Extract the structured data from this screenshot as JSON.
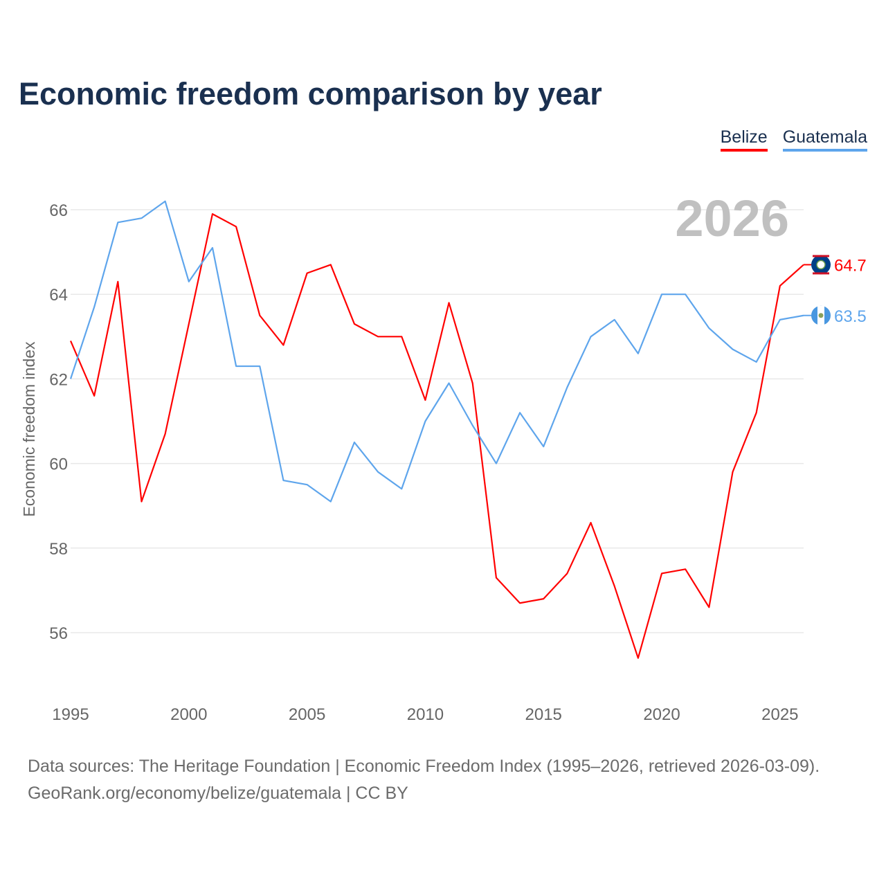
{
  "title": "Economic freedom comparison by year",
  "source_line1": "Data sources: The Heritage Foundation | Economic Freedom Index (1995–2026, retrieved 2026-03-09).",
  "source_line2": "GeoRank.org/economy/belize/guatemala | CC BY",
  "chart_data": {
    "type": "line",
    "title": "Economic freedom comparison by year",
    "xlabel": "",
    "ylabel": "Economic freedom index",
    "year_label": "2026",
    "x": [
      1995,
      1996,
      1997,
      1998,
      1999,
      2000,
      2001,
      2002,
      2003,
      2004,
      2005,
      2006,
      2007,
      2008,
      2009,
      2010,
      2011,
      2012,
      2013,
      2014,
      2015,
      2016,
      2017,
      2018,
      2019,
      2020,
      2021,
      2022,
      2023,
      2024,
      2025,
      2026
    ],
    "xticks": [
      1995,
      2000,
      2005,
      2010,
      2015,
      2020,
      2025
    ],
    "yticks": [
      56,
      58,
      60,
      62,
      64,
      66
    ],
    "xlim": [
      1995,
      2026
    ],
    "ylim": [
      54.8,
      66.4
    ],
    "grid": true,
    "legend_position": "top-right",
    "series": [
      {
        "name": "Belize",
        "color": "#ff0000",
        "end_label": "64.7",
        "flag": "belize-flag",
        "values": [
          62.9,
          61.6,
          64.3,
          59.1,
          60.7,
          63.3,
          65.9,
          65.6,
          63.5,
          62.8,
          64.5,
          64.7,
          63.3,
          63.0,
          63.0,
          61.5,
          63.8,
          61.9,
          57.3,
          56.7,
          56.8,
          57.4,
          58.6,
          57.1,
          55.4,
          57.4,
          57.5,
          56.6,
          59.8,
          61.2,
          64.2,
          64.7
        ]
      },
      {
        "name": "Guatemala",
        "color": "#5ea5ec",
        "end_label": "63.5",
        "flag": "guatemala-flag",
        "values": [
          62.0,
          63.7,
          65.7,
          65.8,
          66.2,
          64.3,
          65.1,
          62.3,
          62.3,
          59.6,
          59.5,
          59.1,
          60.5,
          59.8,
          59.4,
          61.0,
          61.9,
          60.9,
          60.0,
          61.2,
          60.4,
          61.8,
          63.0,
          63.4,
          62.6,
          64.0,
          64.0,
          63.2,
          62.7,
          62.4,
          63.4,
          63.5
        ]
      }
    ]
  }
}
